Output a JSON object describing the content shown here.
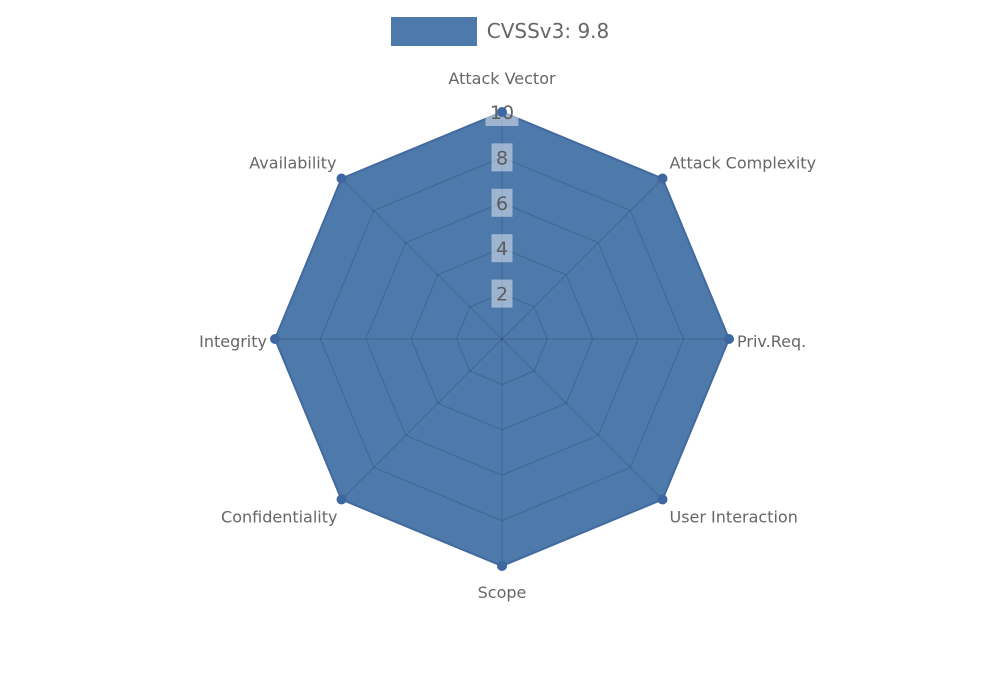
{
  "legend": {
    "label": "CVSSv3: 9.8",
    "swatch_color": "#4d79ab"
  },
  "chart_data": {
    "type": "radar",
    "title": "CVSSv3: 9.8",
    "categories": [
      "Attack Vector",
      "Attack Complexity",
      "Priv.Req.",
      "User Interaction",
      "Scope",
      "Confidentiality",
      "Integrity",
      "Availability"
    ],
    "series": [
      {
        "name": "CVSSv3: 9.8",
        "values": [
          10,
          10,
          10,
          10,
          10,
          10,
          10,
          10
        ]
      }
    ],
    "max": 10,
    "rings": [
      2,
      4,
      6,
      8,
      10
    ],
    "tick_labels": [
      "2",
      "4",
      "6",
      "8",
      "10"
    ],
    "legend_position": "top-center",
    "grid": "octagonal-web",
    "colors": {
      "fill": "#4d79ab",
      "outline": "#426a9e",
      "marker": "#3e66a0",
      "grid_line": "rgba(0,0,0,0.15)",
      "tick_box": "rgba(255,255,255,0.45)",
      "tick_text": "#565656",
      "axis_label": "#666666",
      "legend_text": "#666666",
      "background": "#ffffff"
    }
  }
}
